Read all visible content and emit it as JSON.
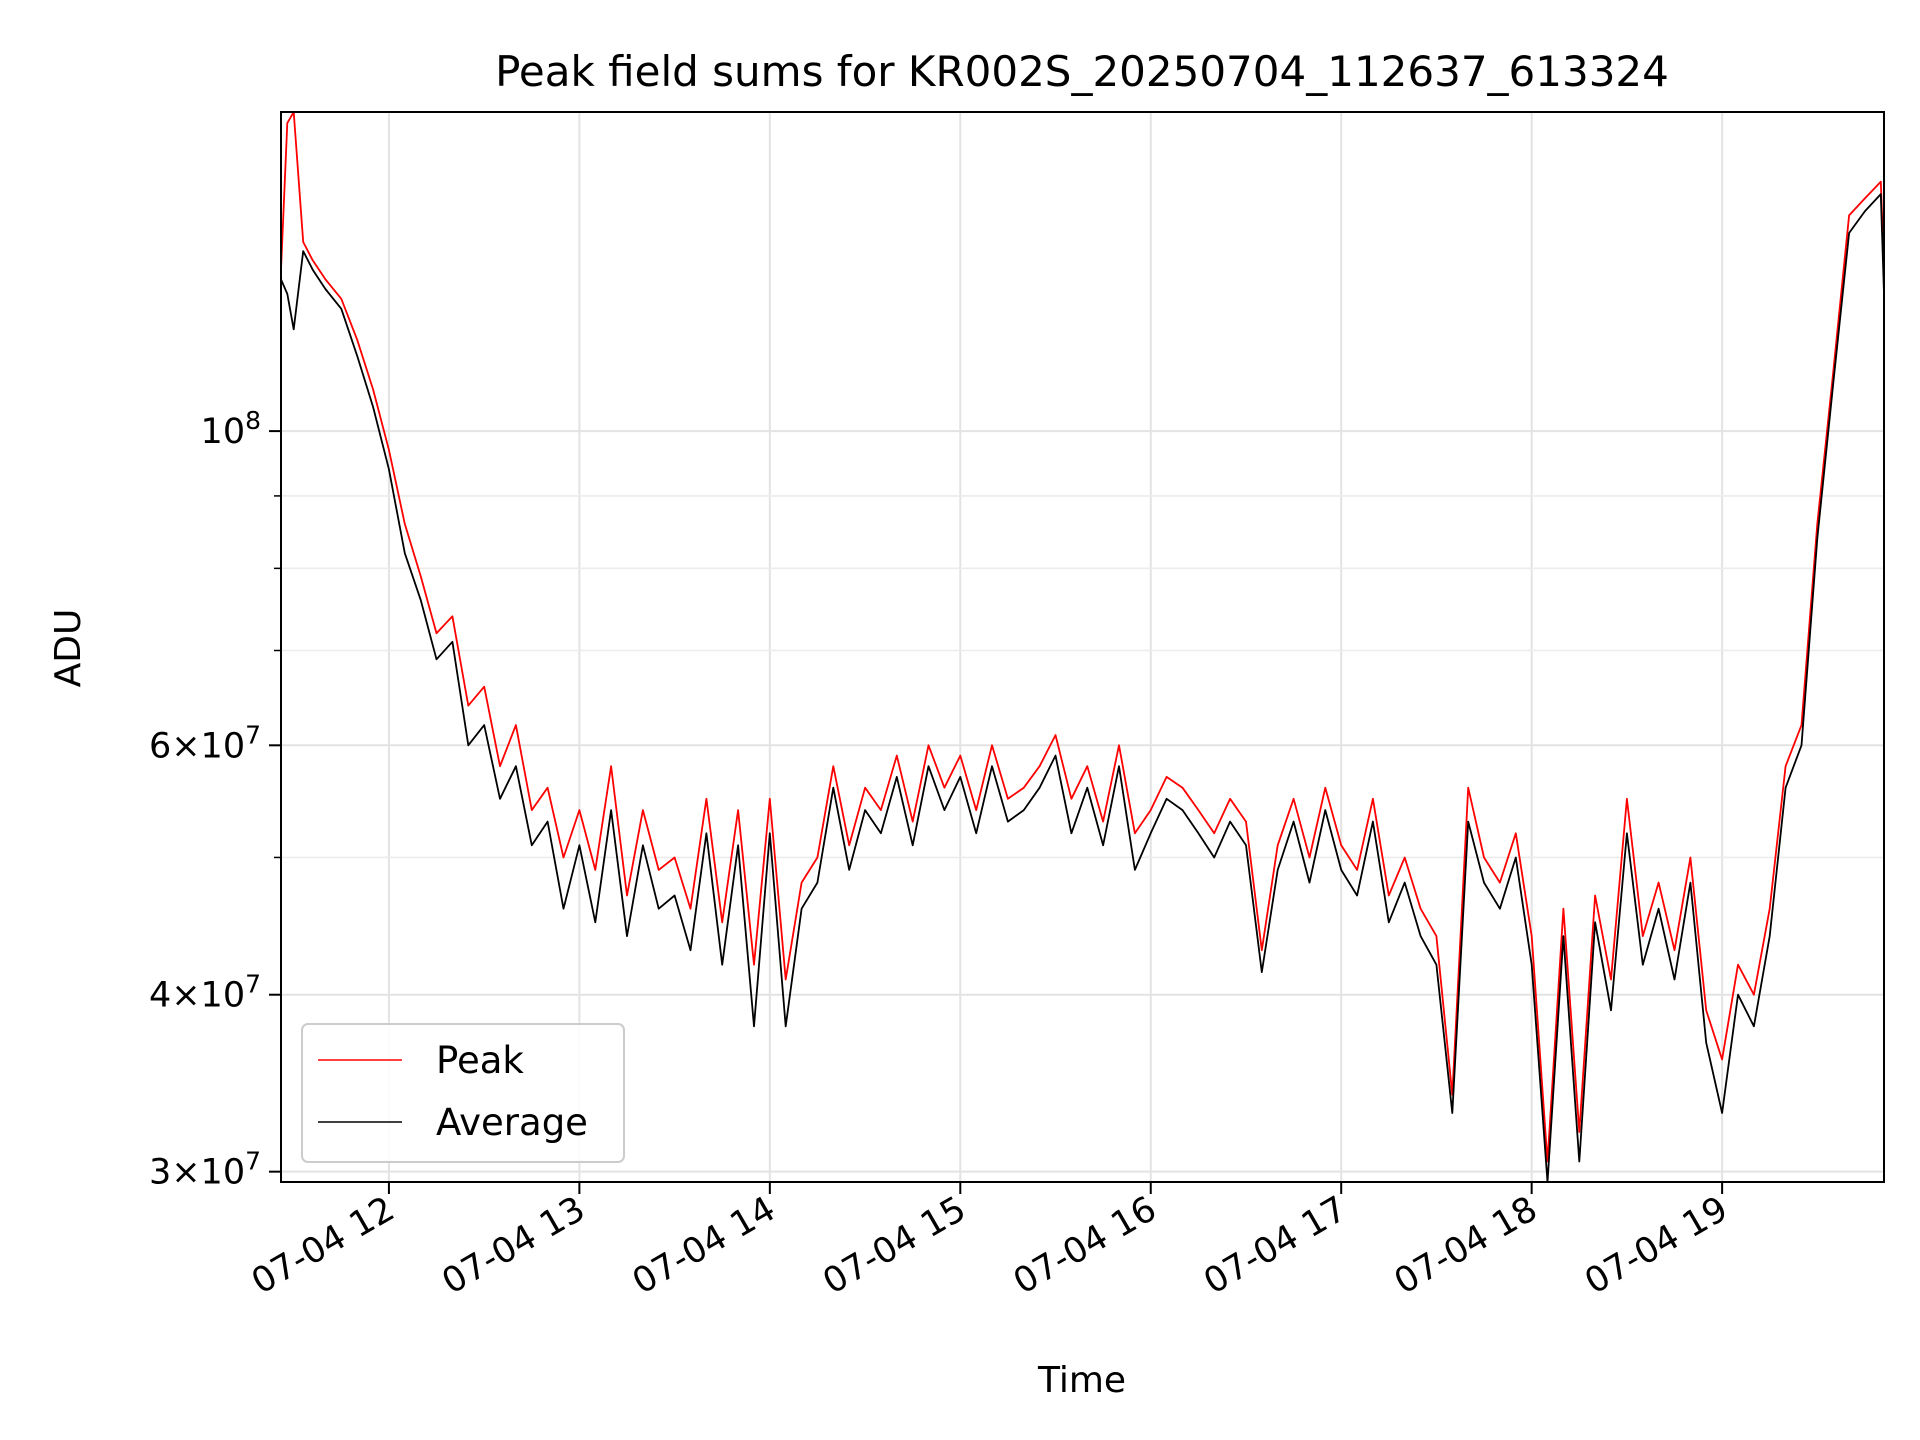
{
  "chart_data": {
    "type": "line",
    "title": "Peak field sums for KR002S_20250704_112637_613324",
    "xlabel": "Time",
    "ylabel": "ADU",
    "yscale": "log",
    "ylim": [
      29500000,
      168000000
    ],
    "xlim": [
      "07-04 11:26",
      "07-04 19:51"
    ],
    "grid": true,
    "legend_position": "lower-left",
    "x_ticks": [
      "07-04 12",
      "07-04 13",
      "07-04 14",
      "07-04 15",
      "07-04 16",
      "07-04 17",
      "07-04 18",
      "07-04 19"
    ],
    "y_ticks": [
      {
        "base": "3",
        "exp": "7",
        "value": 30000000
      },
      {
        "base": "4",
        "exp": "7",
        "value": 40000000
      },
      {
        "base": "6",
        "exp": "7",
        "value": 60000000
      },
      {
        "base": "",
        "exp": "8",
        "value": 100000000
      }
    ],
    "y_minor_ticks": [
      50000000,
      70000000,
      80000000,
      90000000
    ],
    "series": [
      {
        "name": "Peak",
        "color": "#ff0000",
        "x": [
          "07-04 11:26",
          "07-04 11:28",
          "07-04 11:30",
          "07-04 11:33",
          "07-04 11:36",
          "07-04 11:40",
          "07-04 11:45",
          "07-04 11:50",
          "07-04 11:55",
          "07-04 12:00",
          "07-04 12:05",
          "07-04 12:10",
          "07-04 12:15",
          "07-04 12:20",
          "07-04 12:25",
          "07-04 12:30",
          "07-04 12:35",
          "07-04 12:40",
          "07-04 12:45",
          "07-04 12:50",
          "07-04 12:55",
          "07-04 13:00",
          "07-04 13:05",
          "07-04 13:10",
          "07-04 13:15",
          "07-04 13:20",
          "07-04 13:25",
          "07-04 13:30",
          "07-04 13:35",
          "07-04 13:40",
          "07-04 13:45",
          "07-04 13:50",
          "07-04 13:55",
          "07-04 14:00",
          "07-04 14:05",
          "07-04 14:10",
          "07-04 14:15",
          "07-04 14:20",
          "07-04 14:25",
          "07-04 14:30",
          "07-04 14:35",
          "07-04 14:40",
          "07-04 14:45",
          "07-04 14:50",
          "07-04 14:55",
          "07-04 15:00",
          "07-04 15:05",
          "07-04 15:10",
          "07-04 15:15",
          "07-04 15:20",
          "07-04 15:25",
          "07-04 15:30",
          "07-04 15:35",
          "07-04 15:40",
          "07-04 15:45",
          "07-04 15:50",
          "07-04 15:55",
          "07-04 16:00",
          "07-04 16:05",
          "07-04 16:10",
          "07-04 16:15",
          "07-04 16:20",
          "07-04 16:25",
          "07-04 16:30",
          "07-04 16:35",
          "07-04 16:40",
          "07-04 16:45",
          "07-04 16:50",
          "07-04 16:55",
          "07-04 17:00",
          "07-04 17:05",
          "07-04 17:10",
          "07-04 17:15",
          "07-04 17:20",
          "07-04 17:25",
          "07-04 17:30",
          "07-04 17:35",
          "07-04 17:40",
          "07-04 17:45",
          "07-04 17:50",
          "07-04 17:55",
          "07-04 18:00",
          "07-04 18:05",
          "07-04 18:10",
          "07-04 18:15",
          "07-04 18:20",
          "07-04 18:25",
          "07-04 18:30",
          "07-04 18:35",
          "07-04 18:40",
          "07-04 18:45",
          "07-04 18:50",
          "07-04 18:55",
          "07-04 19:00",
          "07-04 19:05",
          "07-04 19:10",
          "07-04 19:15",
          "07-04 19:20",
          "07-04 19:25",
          "07-04 19:30",
          "07-04 19:35",
          "07-04 19:40",
          "07-04 19:45",
          "07-04 19:50",
          "07-04 19:51"
        ],
        "values": [
          130000000,
          165000000,
          168000000,
          136000000,
          132000000,
          128000000,
          124000000,
          116000000,
          107000000,
          97000000,
          86000000,
          79000000,
          72000000,
          74000000,
          64000000,
          66000000,
          58000000,
          62000000,
          54000000,
          56000000,
          50000000,
          54000000,
          49000000,
          58000000,
          47000000,
          54000000,
          49000000,
          50000000,
          46000000,
          55000000,
          45000000,
          54000000,
          42000000,
          55000000,
          41000000,
          48000000,
          50000000,
          58000000,
          51000000,
          56000000,
          54000000,
          59000000,
          53000000,
          60000000,
          56000000,
          59000000,
          54000000,
          60000000,
          55000000,
          56000000,
          58000000,
          61000000,
          55000000,
          58000000,
          53000000,
          60000000,
          52000000,
          54000000,
          57000000,
          56000000,
          54000000,
          52000000,
          55000000,
          53000000,
          43000000,
          51000000,
          55000000,
          50000000,
          56000000,
          51000000,
          49000000,
          55000000,
          47000000,
          50000000,
          46000000,
          44000000,
          34000000,
          56000000,
          50000000,
          48000000,
          52000000,
          44000000,
          30500000,
          46000000,
          32000000,
          47000000,
          41000000,
          55000000,
          44000000,
          48000000,
          43000000,
          50000000,
          39000000,
          36000000,
          42000000,
          40000000,
          46000000,
          58000000,
          62000000,
          86000000,
          110000000,
          142000000,
          146000000,
          150000000,
          130000000
        ]
      },
      {
        "name": "Average",
        "color": "#000000",
        "x": [
          "07-04 11:26",
          "07-04 11:28",
          "07-04 11:30",
          "07-04 11:33",
          "07-04 11:36",
          "07-04 11:40",
          "07-04 11:45",
          "07-04 11:50",
          "07-04 11:55",
          "07-04 12:00",
          "07-04 12:05",
          "07-04 12:10",
          "07-04 12:15",
          "07-04 12:20",
          "07-04 12:25",
          "07-04 12:30",
          "07-04 12:35",
          "07-04 12:40",
          "07-04 12:45",
          "07-04 12:50",
          "07-04 12:55",
          "07-04 13:00",
          "07-04 13:05",
          "07-04 13:10",
          "07-04 13:15",
          "07-04 13:20",
          "07-04 13:25",
          "07-04 13:30",
          "07-04 13:35",
          "07-04 13:40",
          "07-04 13:45",
          "07-04 13:50",
          "07-04 13:55",
          "07-04 14:00",
          "07-04 14:05",
          "07-04 14:10",
          "07-04 14:15",
          "07-04 14:20",
          "07-04 14:25",
          "07-04 14:30",
          "07-04 14:35",
          "07-04 14:40",
          "07-04 14:45",
          "07-04 14:50",
          "07-04 14:55",
          "07-04 15:00",
          "07-04 15:05",
          "07-04 15:10",
          "07-04 15:15",
          "07-04 15:20",
          "07-04 15:25",
          "07-04 15:30",
          "07-04 15:35",
          "07-04 15:40",
          "07-04 15:45",
          "07-04 15:50",
          "07-04 15:55",
          "07-04 16:00",
          "07-04 16:05",
          "07-04 16:10",
          "07-04 16:15",
          "07-04 16:20",
          "07-04 16:25",
          "07-04 16:30",
          "07-04 16:35",
          "07-04 16:40",
          "07-04 16:45",
          "07-04 16:50",
          "07-04 16:55",
          "07-04 17:00",
          "07-04 17:05",
          "07-04 17:10",
          "07-04 17:15",
          "07-04 17:20",
          "07-04 17:25",
          "07-04 17:30",
          "07-04 17:35",
          "07-04 17:40",
          "07-04 17:45",
          "07-04 17:50",
          "07-04 17:55",
          "07-04 18:00",
          "07-04 18:05",
          "07-04 18:10",
          "07-04 18:15",
          "07-04 18:20",
          "07-04 18:25",
          "07-04 18:30",
          "07-04 18:35",
          "07-04 18:40",
          "07-04 18:45",
          "07-04 18:50",
          "07-04 18:55",
          "07-04 19:00",
          "07-04 19:05",
          "07-04 19:10",
          "07-04 19:15",
          "07-04 19:20",
          "07-04 19:25",
          "07-04 19:30",
          "07-04 19:35",
          "07-04 19:40",
          "07-04 19:45",
          "07-04 19:50",
          "07-04 19:51"
        ],
        "values": [
          128000000,
          125000000,
          118000000,
          134000000,
          130000000,
          126000000,
          122000000,
          113000000,
          104000000,
          94000000,
          82000000,
          76000000,
          69000000,
          71000000,
          60000000,
          62000000,
          55000000,
          58000000,
          51000000,
          53000000,
          46000000,
          51000000,
          45000000,
          54000000,
          44000000,
          51000000,
          46000000,
          47000000,
          43000000,
          52000000,
          42000000,
          51000000,
          38000000,
          52000000,
          38000000,
          46000000,
          48000000,
          56000000,
          49000000,
          54000000,
          52000000,
          57000000,
          51000000,
          58000000,
          54000000,
          57000000,
          52000000,
          58000000,
          53000000,
          54000000,
          56000000,
          59000000,
          52000000,
          56000000,
          51000000,
          58000000,
          49000000,
          52000000,
          55000000,
          54000000,
          52000000,
          50000000,
          53000000,
          51000000,
          41500000,
          49000000,
          53000000,
          48000000,
          54000000,
          49000000,
          47000000,
          53000000,
          45000000,
          48000000,
          44000000,
          42000000,
          33000000,
          53000000,
          48000000,
          46000000,
          50000000,
          42000000,
          29500000,
          44000000,
          30500000,
          45000000,
          39000000,
          52000000,
          42000000,
          46000000,
          41000000,
          48000000,
          37000000,
          33000000,
          40000000,
          38000000,
          44000000,
          56000000,
          60000000,
          84000000,
          108000000,
          138000000,
          143000000,
          147000000,
          125000000
        ]
      }
    ]
  }
}
